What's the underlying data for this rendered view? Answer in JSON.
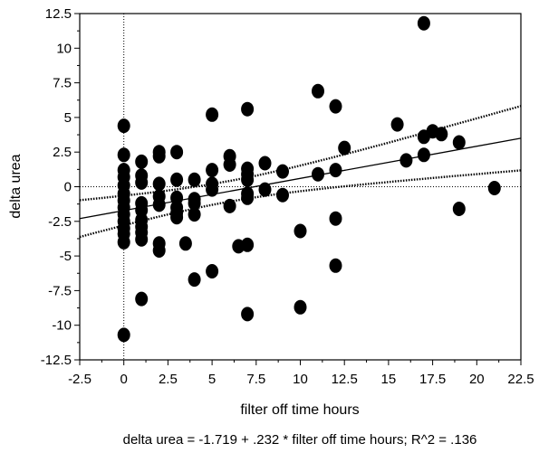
{
  "chart_data": {
    "type": "scatter",
    "title": "",
    "xlabel": "filter off time hours",
    "ylabel": "delta urea",
    "footer": "delta urea = -1.719 + .232 * filter off time hours; R^2 = .136",
    "xlim": [
      -2.5,
      22.5
    ],
    "ylim": [
      -12.5,
      12.5
    ],
    "x_ticks": [
      "-2.5",
      "0",
      "2.5",
      "5",
      "7.5",
      "10",
      "12.5",
      "15",
      "17.5",
      "20",
      "22.5"
    ],
    "y_ticks": [
      "12.5",
      "10",
      "7.5",
      "5",
      "2.5",
      "0",
      "-2.5",
      "-5",
      "-7.5",
      "-10",
      "-12.5"
    ],
    "grid": false,
    "reference_lines": {
      "x": 0,
      "y": 0,
      "style": "dotted"
    },
    "regression": {
      "intercept": -1.719,
      "slope": 0.232,
      "confidence_bands": "dotted"
    },
    "marker_color": "#000000",
    "points": [
      [
        0,
        4.4
      ],
      [
        0,
        2.3
      ],
      [
        0,
        1.2
      ],
      [
        0,
        0.7
      ],
      [
        0,
        0.1
      ],
      [
        0,
        -0.5
      ],
      [
        0,
        -1.0
      ],
      [
        0,
        -1.5
      ],
      [
        0,
        -2.0
      ],
      [
        0,
        -2.5
      ],
      [
        0,
        -3.0
      ],
      [
        0,
        -3.4
      ],
      [
        0,
        -4.0
      ],
      [
        0,
        -10.7
      ],
      [
        1,
        1.8
      ],
      [
        1,
        0.8
      ],
      [
        1,
        0.3
      ],
      [
        1,
        -1.2
      ],
      [
        1,
        -1.7
      ],
      [
        1,
        -2.4
      ],
      [
        1,
        -2.9
      ],
      [
        1,
        -3.3
      ],
      [
        1,
        -3.8
      ],
      [
        1,
        -8.1
      ],
      [
        2,
        2.5
      ],
      [
        2,
        2.2
      ],
      [
        2,
        0.2
      ],
      [
        2,
        -0.7
      ],
      [
        2,
        -1.3
      ],
      [
        2,
        -4.1
      ],
      [
        2,
        -4.6
      ],
      [
        3,
        2.5
      ],
      [
        3,
        0.5
      ],
      [
        3,
        -0.8
      ],
      [
        3,
        -1.5
      ],
      [
        3,
        -1.9
      ],
      [
        3,
        -2.2
      ],
      [
        3.5,
        -4.1
      ],
      [
        4,
        0.5
      ],
      [
        4,
        -0.9
      ],
      [
        4,
        -1.2
      ],
      [
        4,
        -2.0
      ],
      [
        4,
        -6.7
      ],
      [
        5,
        5.2
      ],
      [
        5,
        1.2
      ],
      [
        5,
        0.2
      ],
      [
        5,
        -0.2
      ],
      [
        5,
        -6.1
      ],
      [
        6,
        2.2
      ],
      [
        6,
        1.6
      ],
      [
        6,
        -1.4
      ],
      [
        6.5,
        -4.3
      ],
      [
        7,
        5.6
      ],
      [
        7,
        1.3
      ],
      [
        7,
        0.9
      ],
      [
        7,
        0.5
      ],
      [
        7,
        -0.5
      ],
      [
        7,
        -0.8
      ],
      [
        7,
        -4.2
      ],
      [
        7,
        -9.2
      ],
      [
        8,
        1.7
      ],
      [
        8,
        -0.2
      ],
      [
        9,
        1.1
      ],
      [
        9,
        -0.6
      ],
      [
        10,
        -3.2
      ],
      [
        10,
        -8.7
      ],
      [
        11,
        6.9
      ],
      [
        11,
        0.9
      ],
      [
        12,
        5.8
      ],
      [
        12,
        1.2
      ],
      [
        12,
        -2.3
      ],
      [
        12,
        -5.7
      ],
      [
        12.5,
        2.8
      ],
      [
        15.5,
        4.5
      ],
      [
        16,
        1.9
      ],
      [
        17,
        11.8
      ],
      [
        17,
        3.6
      ],
      [
        17,
        2.3
      ],
      [
        17.5,
        4.0
      ],
      [
        18,
        3.8
      ],
      [
        19,
        3.2
      ],
      [
        19,
        -1.6
      ],
      [
        21,
        -0.1
      ]
    ]
  }
}
